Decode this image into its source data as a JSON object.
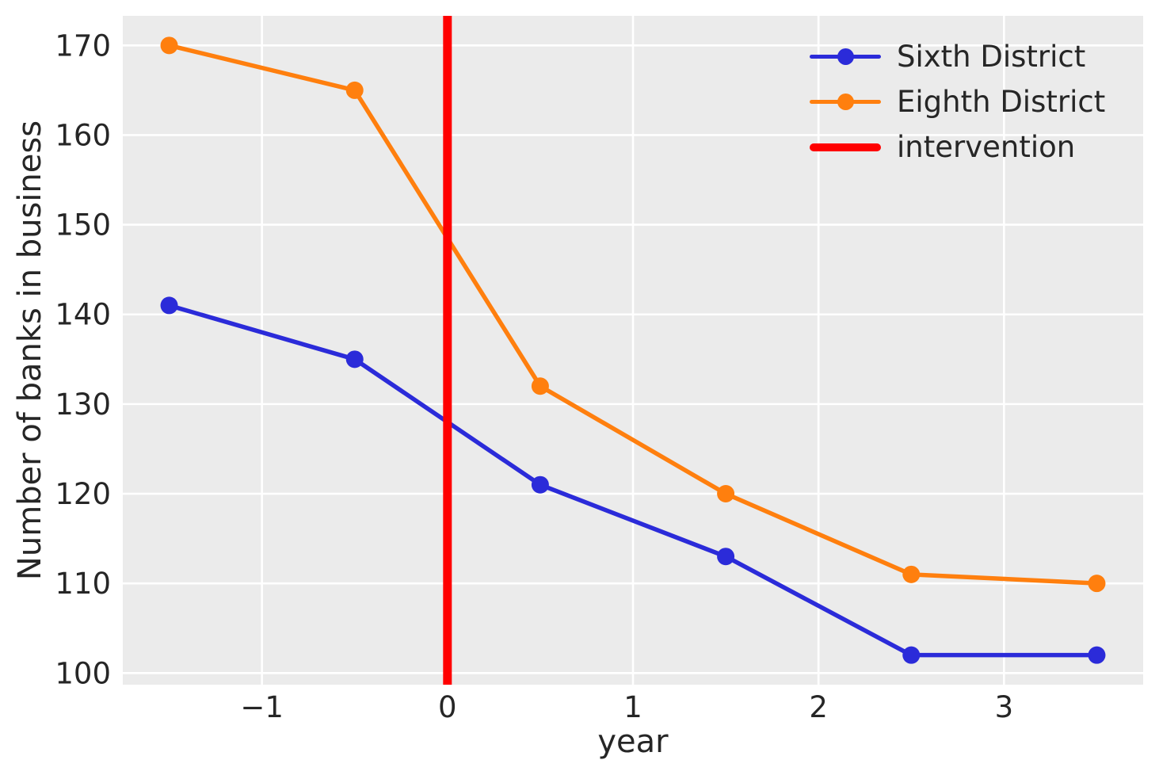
{
  "figure": {
    "background": "#ffffff",
    "plot_background": "#ebebeb",
    "grid_color": "#ffffff",
    "text_color": "#262626"
  },
  "chart_data": {
    "type": "line",
    "title": "",
    "xlabel": "year",
    "ylabel": "Number of banks in business",
    "x": [
      -1.5,
      -0.5,
      0.5,
      1.5,
      2.5,
      3.5
    ],
    "series": [
      {
        "name": "Sixth District",
        "color": "#2b2bd9",
        "marker": "circle",
        "values": [
          141,
          135,
          121,
          113,
          102,
          102
        ]
      },
      {
        "name": "Eighth District",
        "color": "#ff7f0e",
        "marker": "circle",
        "values": [
          170,
          165,
          132,
          120,
          111,
          110
        ]
      }
    ],
    "intervention": {
      "label": "intervention",
      "x": 0,
      "color": "#ff0000"
    },
    "xticks": [
      -1,
      0,
      1,
      2,
      3
    ],
    "xtick_labels": [
      "−1",
      "0",
      "1",
      "2",
      "3"
    ],
    "yticks": [
      100,
      110,
      120,
      130,
      140,
      150,
      160,
      170
    ],
    "ytick_labels": [
      "100",
      "110",
      "120",
      "130",
      "140",
      "150",
      "160",
      "170"
    ],
    "xlim": [
      -1.75,
      3.75
    ],
    "ylim": [
      98.7,
      173.3
    ],
    "grid": true,
    "legend_position": "upper right"
  }
}
